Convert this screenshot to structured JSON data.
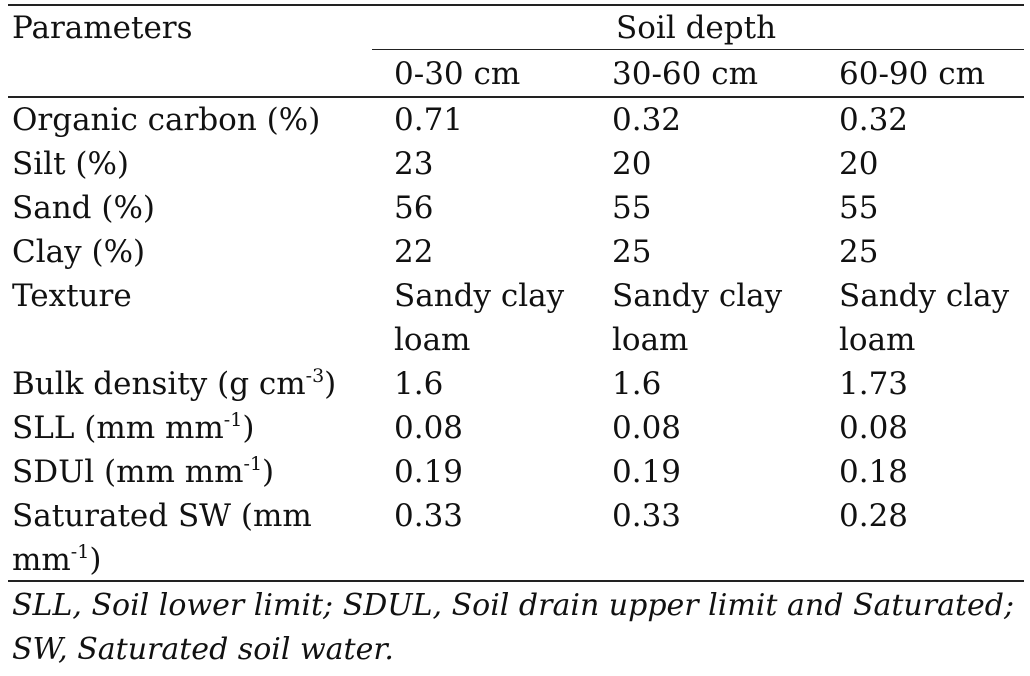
{
  "table": {
    "param_header": "Parameters",
    "group_header": "Soil depth",
    "columns": [
      "0-30 cm",
      "30-60 cm",
      "60-90 cm"
    ],
    "rows": [
      {
        "label": "Organic carbon (%)",
        "values": [
          "0.71",
          "0.32",
          "0.32"
        ]
      },
      {
        "label": "Silt (%)",
        "values": [
          "23",
          "20",
          "20"
        ]
      },
      {
        "label": "Sand (%)",
        "values": [
          "56",
          "55",
          "55"
        ]
      },
      {
        "label": "Clay (%)",
        "values": [
          "22",
          "25",
          "25"
        ]
      },
      {
        "label": "Texture",
        "values": [
          "Sandy clay loam",
          "Sandy clay loam",
          "Sandy clay loam"
        ]
      },
      {
        "label_text": "Bulk density (g cm",
        "label_sup": "-3",
        "label_after": ")",
        "values": [
          "1.6",
          "1.6",
          "1.73"
        ]
      },
      {
        "label_text": "SLL (mm mm",
        "label_sup": "-1",
        "label_after": ")",
        "values": [
          "0.08",
          "0.08",
          "0.08"
        ]
      },
      {
        "label_text": "SDUl (mm mm",
        "label_sup": "-1",
        "label_after": ")",
        "values": [
          "0.19",
          "0.19",
          "0.18"
        ]
      },
      {
        "label_line1": "Saturated SW (mm",
        "label_text": "mm",
        "label_sup": "-1",
        "label_after": ")",
        "values": [
          "0.33",
          "0.33",
          "0.28"
        ]
      }
    ],
    "footnote": "SLL, Soil lower limit; SDUL, Soil drain upper limit and Saturated; SW, Saturated soil water."
  }
}
